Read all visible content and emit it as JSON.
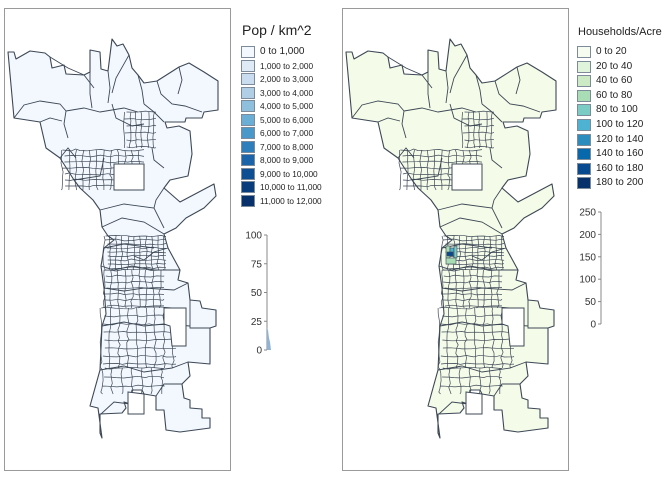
{
  "left_panel": {
    "legend_title": "Pop / km^2",
    "classes": [
      {
        "label": "0 to 1,000",
        "color": "#f3f8fe"
      },
      {
        "label": "1,000 to 2,000",
        "color": "#deebf7"
      },
      {
        "label": "2,000 to 3,000",
        "color": "#cadcef"
      },
      {
        "label": "3,000 to 4,000",
        "color": "#b0cfe6"
      },
      {
        "label": "4,000 to 5,000",
        "color": "#8ebfdc"
      },
      {
        "label": "5,000 to 6,000",
        "color": "#6aaed6"
      },
      {
        "label": "6,000 to 7,000",
        "color": "#4a97c9"
      },
      {
        "label": "7,000 to 8,000",
        "color": "#2f7ebc"
      },
      {
        "label": "8,000 to 9,000",
        "color": "#1b64a9"
      },
      {
        "label": "9,000 to 10,000",
        "color": "#0e4f94"
      },
      {
        "label": "10,000 to 11,000",
        "color": "#093c7a"
      },
      {
        "label": "11,000 to 12,000",
        "color": "#08306b"
      }
    ],
    "histogram_ticks": [
      "100",
      "75",
      "50",
      "25",
      "0"
    ],
    "map_fill": "#f3f8fe"
  },
  "right_panel": {
    "legend_title": "Households/Acre",
    "classes": [
      {
        "label": "0 to 20",
        "color": "#f7fcf0"
      },
      {
        "label": "20 to 40",
        "color": "#e0f3db"
      },
      {
        "label": "40 to 60",
        "color": "#ccebc5"
      },
      {
        "label": "60 to 80",
        "color": "#a8ddb5"
      },
      {
        "label": "80 to 100",
        "color": "#7bccc4"
      },
      {
        "label": "100 to 120",
        "color": "#4eb3d3"
      },
      {
        "label": "120 to 140",
        "color": "#2b8cbe"
      },
      {
        "label": "140 to 160",
        "color": "#0868ac"
      },
      {
        "label": "160 to 180",
        "color": "#084a8f"
      },
      {
        "label": "180 to 200",
        "color": "#08306b"
      }
    ],
    "histogram_ticks": [
      "250",
      "200",
      "150",
      "100",
      "50",
      "0"
    ],
    "map_fill": "#f5fbe9"
  },
  "colors": {
    "boundary": "#3d4856",
    "frame": "#9a9a9a"
  }
}
